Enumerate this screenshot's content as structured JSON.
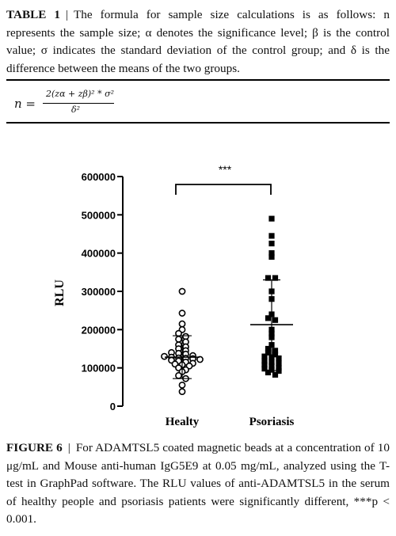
{
  "table": {
    "label": "TABLE 1",
    "separator": "|",
    "caption": "The formula for sample size calculations is as follows: n represents the sample size; α denotes the significance level; β is the control value; σ indicates the standard deviation of the control group; and δ is the difference between the means of the two groups.",
    "formula_lhs": "n =",
    "formula_numerator": "2(zα + zβ)² * σ²",
    "formula_denominator": "δ²"
  },
  "figure": {
    "label": "FIGURE 6",
    "separator": "|",
    "caption": "For ADAMTSL5 coated magnetic beads at a concentration of 10 μg/mL and Mouse anti-human IgG5E9 at 0.05 mg/mL, analyzed using the T-test in GraphPad software. The RLU values of anti-ADAMTSL5 in the serum of healthy people and psoriasis patients were significantly different, ***p < 0.001."
  },
  "chart_data": {
    "type": "scatter",
    "ylabel": "RLU",
    "ylim": [
      0,
      600000
    ],
    "yticks": [
      "0",
      "100000",
      "200000",
      "300000",
      "400000",
      "500000",
      "600000"
    ],
    "categories": [
      "Healty",
      "Psoriasis"
    ],
    "significance": "***",
    "series": [
      {
        "category": "Healty",
        "marker": "open-circle",
        "mean": 128000,
        "sd_low": 72000,
        "sd_high": 184000,
        "values": [
          300000,
          243000,
          215000,
          200000,
          190000,
          182000,
          175000,
          168000,
          160000,
          155000,
          150000,
          145000,
          140000,
          138000,
          136000,
          132000,
          130000,
          128000,
          126000,
          125000,
          124000,
          122000,
          120000,
          118000,
          115000,
          112000,
          110000,
          108000,
          105000,
          100000,
          95000,
          90000,
          80000,
          72000,
          55000,
          38000
        ]
      },
      {
        "category": "Psoriasis",
        "marker": "filled-square",
        "mean": 213000,
        "sd_low": 93000,
        "sd_high": 330000,
        "values": [
          490000,
          445000,
          425000,
          400000,
          390000,
          335000,
          335000,
          300000,
          280000,
          240000,
          230000,
          225000,
          200000,
          190000,
          180000,
          160000,
          150000,
          145000,
          140000,
          135000,
          130000,
          128000,
          125000,
          118000,
          115000,
          112000,
          108000,
          105000,
          100000,
          98000,
          95000,
          92000,
          88000,
          82000
        ]
      }
    ]
  }
}
